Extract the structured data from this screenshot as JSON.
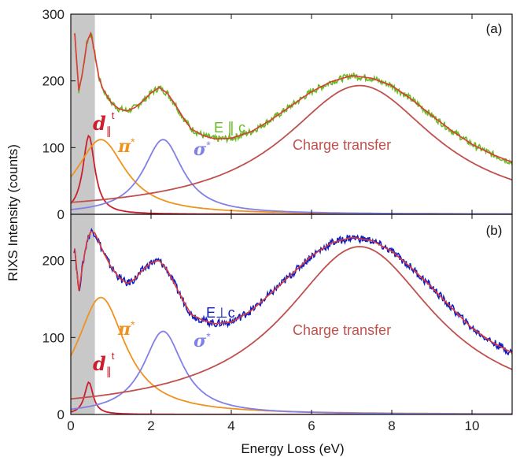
{
  "chart_data": [
    {
      "type": "line",
      "panel_label": "(a)",
      "polarization_label": "E ∥ c",
      "xlim": [
        0,
        11
      ],
      "ylim": [
        0,
        300
      ],
      "xticks": [
        0,
        2,
        4,
        6,
        8,
        10
      ],
      "yticks": [
        0,
        100,
        200,
        300
      ],
      "ytick_labels": [
        "0",
        "100",
        "200",
        "300"
      ],
      "shaded_region": [
        0,
        0.6
      ],
      "components": [
        {
          "name": "d",
          "label_main": "d",
          "label_sub": "∥",
          "label_sup": "t",
          "center": 0.45,
          "amplitude": 118,
          "width": 0.18,
          "color": "#cc1f2e"
        },
        {
          "name": "π*",
          "label_main": "π",
          "label_sup": "*",
          "center": 0.75,
          "amplitude": 112,
          "width": 0.75,
          "color": "#f0921e"
        },
        {
          "name": "σ*",
          "label_main": "σ",
          "label_sup": "*",
          "center": 2.3,
          "amplitude": 112,
          "width": 0.6,
          "color": "#8080e8"
        },
        {
          "name": "Charge transfer",
          "label_main": "Charge transfer",
          "center": 7.2,
          "amplitude": 193,
          "width": 2.3,
          "color": "#c0504d"
        }
      ],
      "data_color": "#66bb22",
      "fit_color": "#e03a3a",
      "data_x": [
        0.1,
        0.2,
        0.3,
        0.4,
        0.5,
        0.6,
        0.7,
        0.8,
        1.0,
        1.2,
        1.4,
        1.6,
        1.8,
        2.0,
        2.2,
        2.4,
        2.6,
        2.8,
        3.0,
        3.3,
        3.6,
        4.0,
        4.5,
        5.0,
        5.5,
        6.0,
        6.5,
        7.0,
        7.5,
        8.0,
        8.5,
        9.0,
        9.5,
        10.0,
        10.5,
        11.0
      ],
      "data_y": [
        270,
        185,
        215,
        258,
        272,
        240,
        205,
        188,
        168,
        158,
        155,
        160,
        170,
        182,
        190,
        182,
        165,
        145,
        128,
        118,
        113,
        114,
        124,
        142,
        163,
        184,
        199,
        208,
        204,
        193,
        172,
        148,
        125,
        105,
        90,
        78
      ]
    },
    {
      "type": "line",
      "panel_label": "(b)",
      "polarization_label": "E⊥c",
      "xlim": [
        0,
        11
      ],
      "ylim": [
        0,
        260
      ],
      "xticks": [
        0,
        2,
        4,
        6,
        8,
        10
      ],
      "xtick_labels": [
        "0",
        "2",
        "4",
        "6",
        "8",
        "10"
      ],
      "yticks": [
        0,
        100,
        200
      ],
      "ytick_labels": [
        "0",
        "100",
        "200"
      ],
      "shaded_region": [
        0,
        0.6
      ],
      "components": [
        {
          "name": "d",
          "label_main": "d",
          "label_sub": "∥",
          "label_sup": "t",
          "center": 0.45,
          "amplitude": 42,
          "width": 0.13,
          "color": "#cc1f2e"
        },
        {
          "name": "π*",
          "label_main": "π",
          "label_sup": "*",
          "center": 0.75,
          "amplitude": 152,
          "width": 0.75,
          "color": "#f0921e"
        },
        {
          "name": "σ*",
          "label_main": "σ",
          "label_sup": "*",
          "center": 2.3,
          "amplitude": 108,
          "width": 0.6,
          "color": "#8080e8"
        },
        {
          "name": "Charge transfer",
          "label_main": "Charge transfer",
          "center": 7.2,
          "amplitude": 218,
          "width": 2.3,
          "color": "#c0504d"
        }
      ],
      "data_color": "#1020c0",
      "fit_color": "#e03a3a",
      "data_x": [
        0.1,
        0.2,
        0.3,
        0.4,
        0.5,
        0.6,
        0.7,
        0.8,
        1.0,
        1.2,
        1.4,
        1.6,
        1.8,
        2.0,
        2.2,
        2.4,
        2.6,
        2.8,
        3.0,
        3.3,
        3.6,
        4.0,
        4.5,
        5.0,
        5.5,
        6.0,
        6.5,
        7.0,
        7.5,
        8.0,
        8.5,
        9.0,
        9.5,
        10.0,
        10.5,
        11.0
      ],
      "data_y": [
        215,
        160,
        195,
        225,
        238,
        236,
        224,
        212,
        192,
        178,
        170,
        176,
        188,
        197,
        200,
        188,
        168,
        148,
        130,
        122,
        118,
        120,
        135,
        158,
        182,
        206,
        223,
        230,
        226,
        212,
        190,
        165,
        138,
        112,
        94,
        80
      ]
    }
  ],
  "axes": {
    "ylabel": "RIXS Intensity (counts)",
    "xlabel": "Energy Loss (eV)"
  },
  "colors": {
    "shade": "#c8c8c8",
    "axis": "#111111"
  }
}
